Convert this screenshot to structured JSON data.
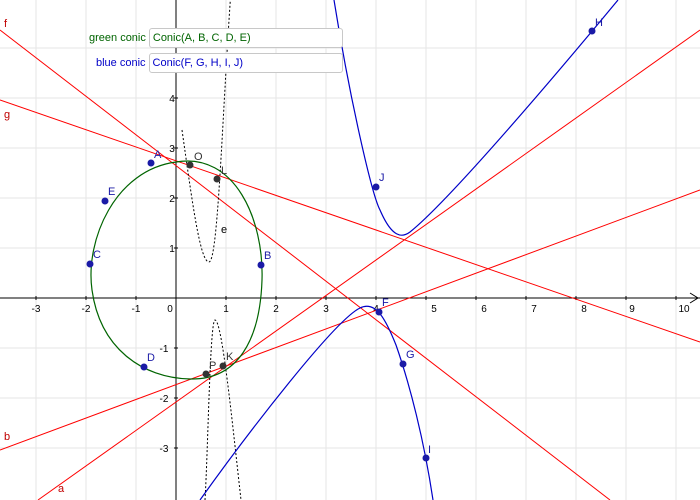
{
  "inputs": {
    "green": {
      "label": "green conic",
      "value": "Conic(A, B, C, D, E)"
    },
    "blue": {
      "label": "blue conic",
      "value": "Conic(F, G, H, I, J)"
    }
  },
  "axes": {
    "x_ticks": [
      "-3",
      "-2",
      "-1",
      "0",
      "1",
      "2",
      "3",
      "4",
      "5",
      "6",
      "7",
      "8",
      "9",
      "10"
    ],
    "y_ticks": [
      "-3",
      "-2",
      "-1",
      "1",
      "2",
      "3",
      "4"
    ]
  },
  "points": {
    "A": "A",
    "B": "B",
    "C": "C",
    "D": "D",
    "E": "E",
    "F": "F",
    "G": "G",
    "H": "H",
    "I": "I",
    "J": "J",
    "K": "K",
    "L": "L",
    "O": "O",
    "P": "P"
  },
  "line_labels": {
    "a": "a",
    "b": "b",
    "f": "f",
    "g": "g",
    "e": "e"
  },
  "colors": {
    "green_conic": "#006400",
    "blue_conic": "#0000c8",
    "red_lines": "#ff0000",
    "points": "#1a1aa6"
  }
}
